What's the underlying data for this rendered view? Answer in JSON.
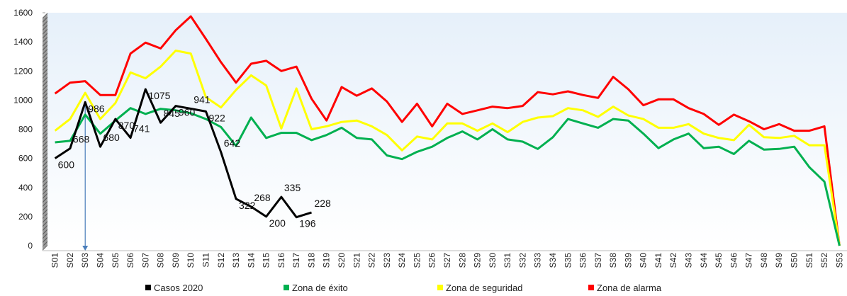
{
  "chart_data": {
    "type": "line",
    "categories": [
      "S01",
      "S02",
      "S03",
      "S04",
      "S05",
      "S06",
      "S07",
      "S08",
      "S09",
      "S10",
      "S11",
      "S12",
      "S13",
      "S14",
      "S15",
      "S16",
      "S17",
      "S18",
      "S19",
      "S20",
      "S21",
      "S22",
      "S23",
      "S24",
      "S25",
      "S26",
      "S27",
      "S28",
      "S29",
      "S30",
      "S31",
      "S32",
      "S33",
      "S34",
      "S35",
      "S36",
      "S37",
      "S38",
      "S39",
      "S40",
      "S41",
      "S42",
      "S43",
      "S44",
      "S45",
      "S46",
      "S47",
      "S48",
      "S49",
      "S50",
      "S51",
      "S52",
      "S53"
    ],
    "series": [
      {
        "name": "Casos 2020",
        "color": "#000000",
        "show_labels": true,
        "values": [
          600,
          668,
          986,
          680,
          870,
          741,
          1075,
          845,
          960,
          941,
          922,
          642,
          322,
          268,
          200,
          335,
          196,
          228,
          null,
          null,
          null,
          null,
          null,
          null,
          null,
          null,
          null,
          null,
          null,
          null,
          null,
          null,
          null,
          null,
          null,
          null,
          null,
          null,
          null,
          null,
          null,
          null,
          null,
          null,
          null,
          null,
          null,
          null,
          null,
          null,
          null,
          null,
          null
        ]
      },
      {
        "name": "Zona de éxito",
        "color": "#00b050",
        "values": [
          710,
          720,
          900,
          770,
          860,
          945,
          905,
          940,
          930,
          910,
          870,
          815,
          685,
          880,
          740,
          775,
          775,
          725,
          760,
          810,
          740,
          730,
          620,
          595,
          645,
          680,
          740,
          785,
          730,
          800,
          730,
          715,
          665,
          745,
          870,
          840,
          810,
          870,
          860,
          770,
          670,
          730,
          770,
          670,
          680,
          630,
          720,
          660,
          665,
          680,
          540,
          440,
          0
        ]
      },
      {
        "name": "Zona de seguridad",
        "color": "#ffff00",
        "values": [
          790,
          870,
          1050,
          870,
          980,
          1190,
          1150,
          1230,
          1340,
          1320,
          1020,
          950,
          1070,
          1170,
          1100,
          805,
          1080,
          800,
          820,
          850,
          860,
          820,
          760,
          655,
          750,
          730,
          840,
          840,
          790,
          840,
          780,
          850,
          880,
          890,
          945,
          930,
          885,
          955,
          895,
          870,
          810,
          810,
          835,
          770,
          740,
          725,
          830,
          745,
          740,
          755,
          690,
          690,
          0
        ]
      },
      {
        "name": "Zona de alarma",
        "color": "#ff0000",
        "values": [
          1045,
          1120,
          1130,
          1035,
          1035,
          1320,
          1395,
          1355,
          1480,
          1575,
          1420,
          1260,
          1120,
          1250,
          1270,
          1200,
          1230,
          1010,
          860,
          1090,
          1030,
          1080,
          990,
          850,
          975,
          820,
          975,
          905,
          930,
          955,
          945,
          960,
          1055,
          1040,
          1060,
          1035,
          1015,
          1160,
          1075,
          965,
          1005,
          1005,
          945,
          905,
          830,
          900,
          855,
          800,
          835,
          790,
          790,
          820,
          0
        ]
      }
    ],
    "ylim": [
      0,
      1600
    ],
    "yticks": [
      0,
      200,
      400,
      600,
      800,
      1000,
      1200,
      1400,
      1600
    ]
  }
}
